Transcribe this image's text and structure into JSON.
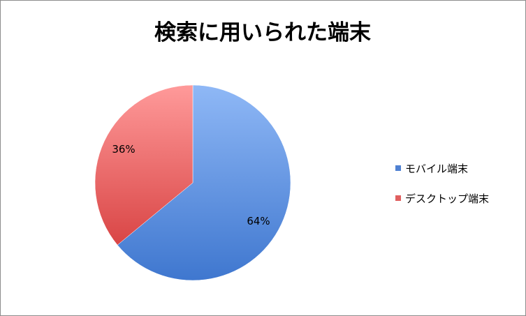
{
  "chart_data": {
    "type": "pie",
    "title": "検索に用いられた端末",
    "series": [
      {
        "name": "",
        "values": [
          64,
          36
        ]
      }
    ],
    "categories": [
      "モバイル端末",
      "デスクトップ端末"
    ],
    "data_labels": [
      "64%",
      "36%"
    ],
    "colors": [
      "#4f81d2",
      "#e06060"
    ],
    "legend_position": "right",
    "start_angle_degrees": 0,
    "direction": "clockwise"
  }
}
